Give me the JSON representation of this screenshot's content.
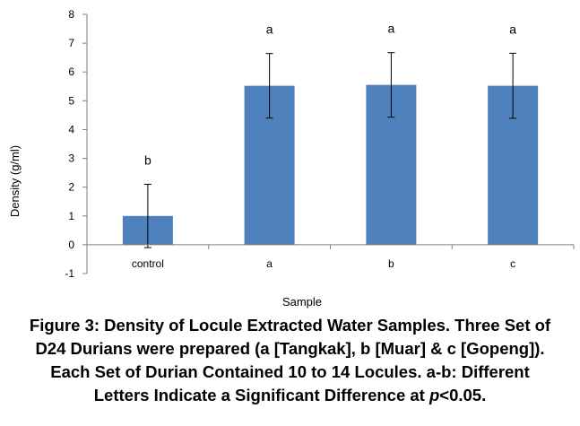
{
  "chart_data": {
    "type": "bar",
    "categories": [
      "control",
      "a",
      "b",
      "c"
    ],
    "values": [
      1.0,
      5.52,
      5.55,
      5.52
    ],
    "error_bars": [
      1.1,
      1.12,
      1.12,
      1.13
    ],
    "significance_labels": [
      "b",
      "a",
      "a",
      "a"
    ],
    "xlabel": "Sample",
    "ylabel": "Density (g/ml)",
    "ylim": [
      -1,
      8
    ],
    "yticks": [
      -1,
      0,
      1,
      2,
      3,
      4,
      5,
      6,
      7,
      8
    ],
    "grid": false,
    "bar_color": "#4f81bd"
  },
  "caption": {
    "line1": "Figure 3: Density of Locule Extracted Water Samples. Three Set of",
    "line2": "D24 Durians were prepared (a [Tangkak], b [Muar] & c [Gopeng]).",
    "line3": "Each Set of Durian Contained 10 to 14 Locules. a-b: Different",
    "line4_prefix": "Letters Indicate a Significant Difference at ",
    "line4_italic": "p",
    "line4_suffix": "<0.05."
  }
}
